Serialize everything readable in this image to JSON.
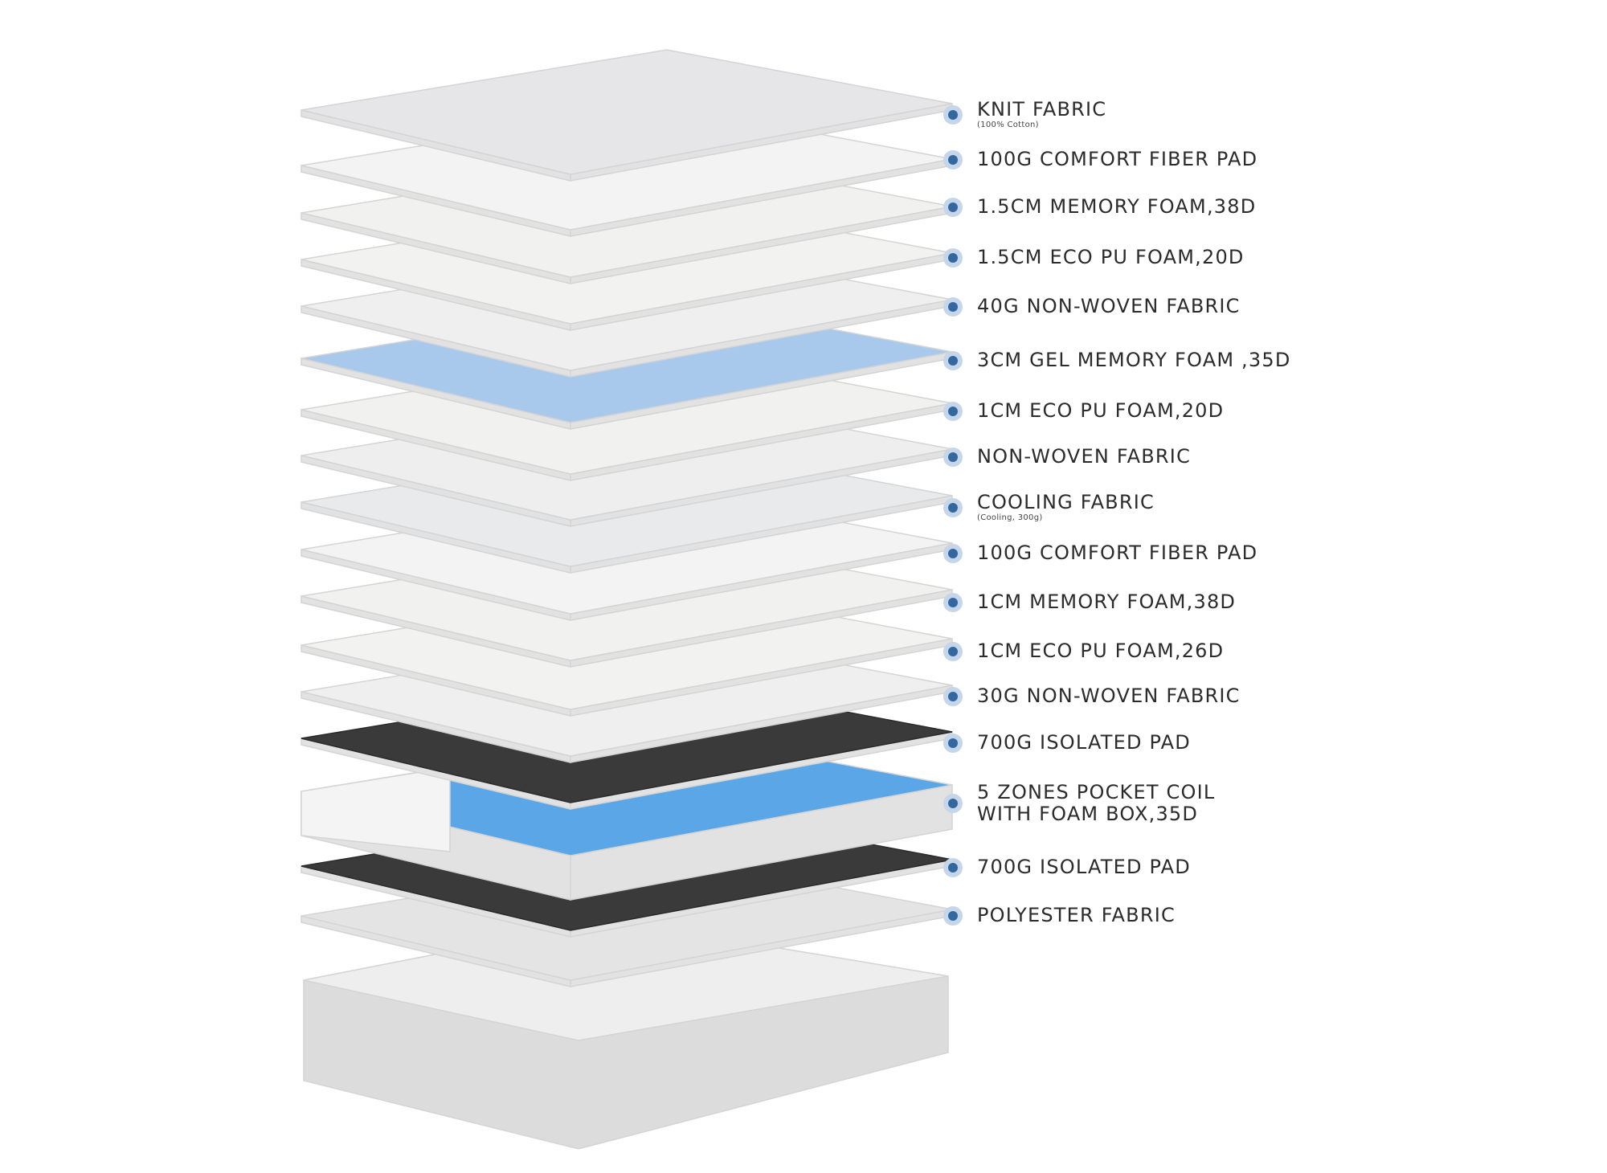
{
  "layers": [
    {
      "label": "KNIT FABRIC",
      "note": "(100% Cotton)",
      "color": "#e6e6e8"
    },
    {
      "label": "100G COMFORT FIBER PAD",
      "color": "#f3f3f3"
    },
    {
      "label": "1.5CM MEMORY FOAM,38D",
      "color": "#f1f1ef"
    },
    {
      "label": "1.5CM ECO PU FOAM,20D",
      "color": "#f2f2f0"
    },
    {
      "label": "40G NON-WOVEN FABRIC",
      "color": "#efefef"
    },
    {
      "label": "3CM GEL MEMORY FOAM ,35D",
      "color": "#a9c9ec"
    },
    {
      "label": "1CM ECO PU FOAM,20D",
      "color": "#f1f1ef"
    },
    {
      "label": "NON-WOVEN FABRIC",
      "color": "#eeeeee"
    },
    {
      "label": "COOLING FABRIC",
      "note": "(Cooling, 300g)",
      "color": "#e9eaec"
    },
    {
      "label": "100G COMFORT FIBER PAD",
      "color": "#f3f3f3"
    },
    {
      "label": "1CM MEMORY FOAM,38D",
      "color": "#f1f1ef"
    },
    {
      "label": "1CM ECO PU FOAM,26D",
      "color": "#f2f2f0"
    },
    {
      "label": "30G NON-WOVEN FABRIC",
      "color": "#efefef"
    },
    {
      "label": "700G ISOLATED PAD",
      "color": "#3a3a3a"
    },
    {
      "label": "5 ZONES POCKET COIL",
      "label2": "WITH FOAM BOX,35D",
      "color": "#5aa6e6"
    },
    {
      "label": "700G ISOLATED PAD",
      "color": "#3a3a3a"
    },
    {
      "label": "POLYESTER FABRIC",
      "color": "#e4e4e4"
    }
  ],
  "accent": "#33679f"
}
